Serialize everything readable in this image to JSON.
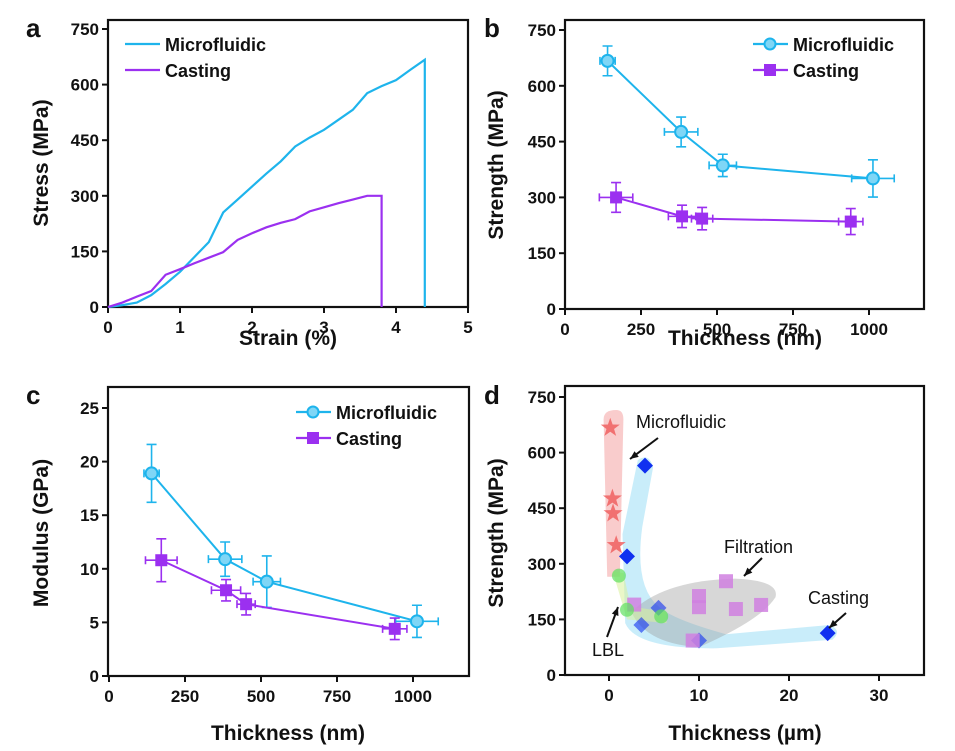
{
  "chart_data": [
    {
      "panel": "a",
      "type": "line",
      "title": "",
      "xlabel": "Strain (%)",
      "ylabel": "Stress (MPa)",
      "xlim": [
        0,
        5
      ],
      "ylim": [
        0,
        750
      ],
      "xticks": [
        "0",
        "1",
        "2",
        "3",
        "4",
        "5"
      ],
      "yticks": [
        "0",
        "150",
        "300",
        "450",
        "600",
        "750"
      ],
      "legend": "top-left",
      "series": [
        {
          "name": "Microfluidic",
          "color": "#1eb4ec",
          "x": [
            0,
            0.2,
            0.4,
            0.6,
            0.8,
            1.0,
            1.2,
            1.4,
            1.6,
            1.8,
            2.0,
            2.2,
            2.4,
            2.6,
            2.8,
            3.0,
            3.2,
            3.4,
            3.6,
            3.8,
            4.0,
            4.2,
            4.4,
            4.4
          ],
          "y": [
            0,
            5,
            12,
            32,
            62,
            95,
            135,
            175,
            255,
            290,
            325,
            360,
            393,
            433,
            457,
            478,
            505,
            532,
            577,
            596,
            612,
            640,
            667,
            0
          ]
        },
        {
          "name": "Casting",
          "color": "#9b30f0",
          "x": [
            0,
            0.2,
            0.4,
            0.6,
            0.8,
            1.0,
            1.2,
            1.4,
            1.6,
            1.8,
            2.0,
            2.2,
            2.4,
            2.6,
            2.8,
            3.0,
            3.2,
            3.4,
            3.6,
            3.8,
            3.8
          ],
          "y": [
            0,
            12,
            28,
            43,
            87,
            102,
            118,
            133,
            148,
            181,
            199,
            215,
            227,
            237,
            258,
            269,
            280,
            290,
            300,
            300,
            0
          ]
        }
      ]
    },
    {
      "panel": "b",
      "type": "scatter",
      "title": "",
      "xlabel": "Thickness (nm)",
      "ylabel": "Strength (MPa)",
      "xlim": [
        0,
        1185
      ],
      "ylim": [
        0,
        750
      ],
      "xticks": [
        "0",
        "250",
        "500",
        "750",
        "1000"
      ],
      "yticks": [
        "0",
        "150",
        "300",
        "450",
        "600",
        "750"
      ],
      "legend": "top-right",
      "series": [
        {
          "name": "Microfluidic",
          "color": "#1eb4ec",
          "marker": "circle",
          "x": [
            140,
            382,
            519,
            1013
          ],
          "y": [
            667,
            476,
            386,
            351
          ],
          "x_err": [
            25,
            55,
            45,
            70
          ],
          "y_err": [
            40,
            40,
            30,
            50
          ]
        },
        {
          "name": "Casting",
          "color": "#9b30f0",
          "marker": "square",
          "x": [
            168,
            385,
            451,
            940
          ],
          "y": [
            300,
            249,
            243,
            235
          ],
          "x_err": [
            55,
            45,
            35,
            40
          ],
          "y_err": [
            40,
            30,
            30,
            35
          ]
        }
      ]
    },
    {
      "panel": "c",
      "type": "scatter",
      "title": "",
      "xlabel": "Thickness (nm)",
      "ylabel": "Modulus (GPa)",
      "xlim": [
        0,
        1185
      ],
      "ylim": [
        0,
        27
      ],
      "xticks": [
        "0",
        "250",
        "500",
        "750",
        "1000"
      ],
      "yticks": [
        "0",
        "5",
        "10",
        "15",
        "20",
        "25"
      ],
      "legend": "top-right",
      "series": [
        {
          "name": "Microfluidic",
          "color": "#1eb4ec",
          "marker": "circle",
          "x": [
            140,
            382,
            519,
            1013
          ],
          "y": [
            18.9,
            10.9,
            8.8,
            5.1
          ],
          "x_err": [
            25,
            55,
            45,
            70
          ],
          "y_err": [
            2.7,
            1.6,
            2.4,
            1.5
          ]
        },
        {
          "name": "Casting",
          "color": "#9b30f0",
          "marker": "square",
          "x": [
            172,
            385,
            451,
            940
          ],
          "y": [
            10.8,
            8.0,
            6.7,
            4.4
          ],
          "x_err": [
            52,
            48,
            30,
            40
          ],
          "y_err": [
            2.0,
            1.0,
            1.0,
            1.0
          ]
        }
      ]
    },
    {
      "panel": "d",
      "type": "scatter",
      "title": "",
      "xlabel": "Thickness (µm)",
      "ylabel": "Strength (MPa)",
      "xlim": [
        -5,
        35
      ],
      "ylim": [
        0,
        750
      ],
      "xticks": [
        "0",
        "10",
        "20",
        "30"
      ],
      "yticks": [
        "0",
        "150",
        "300",
        "450",
        "600",
        "750"
      ],
      "annotations": [
        "Microfluidic",
        "Filtration",
        "Casting",
        "LBL"
      ],
      "series": [
        {
          "name": "Microfluidic",
          "color": "#f06060",
          "marker": "star",
          "x": [
            0.14,
            0.38,
            0.45,
            0.8
          ],
          "y": [
            667,
            476,
            436,
            350
          ]
        },
        {
          "name": "Casting",
          "color": "#1030f0",
          "marker": "diamond",
          "x": [
            4.0,
            2.0,
            5.5,
            3.6,
            10.0,
            24.3
          ],
          "y": [
            565,
            320,
            181,
            135,
            93,
            113
          ]
        },
        {
          "name": "Filtration",
          "color": "#d080e0",
          "marker": "square",
          "x": [
            2.8,
            10.0,
            10.0,
            13.0,
            14.1,
            16.9,
            9.3
          ],
          "y": [
            190,
            213,
            183,
            253,
            178,
            189,
            93
          ]
        },
        {
          "name": "LBL",
          "color": "#60e060",
          "marker": "circle",
          "x": [
            1.1,
            2.0,
            5.8
          ],
          "y": [
            268,
            176,
            158
          ]
        }
      ]
    }
  ]
}
